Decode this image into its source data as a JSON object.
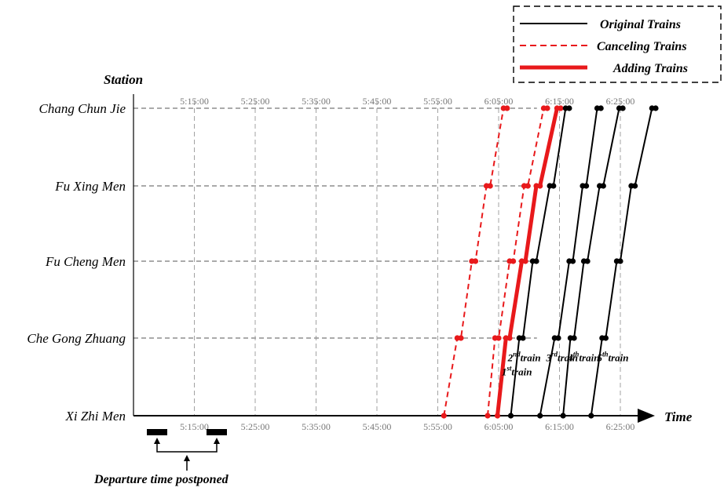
{
  "chart_data": {
    "type": "line",
    "title": "",
    "xlabel": "Time",
    "ylabel": "Station",
    "stations": [
      "Xi Zhi Men",
      "Che Gong Zhuang",
      "Fu Cheng Men",
      "Fu Xing Men",
      "Chang Chun Jie"
    ],
    "x_ticks": [
      "5:15:00",
      "5:25:00",
      "5:35:00",
      "5:45:00",
      "5:55:00",
      "6:05:00",
      "6:15:00",
      "6:25:00"
    ],
    "x_range_minutes": [
      5.0,
      6.5
    ],
    "grid": true,
    "legend": {
      "placement": "top-right",
      "entries": [
        {
          "label": "Original Trains",
          "style": "solid",
          "color": "#000000"
        },
        {
          "label": "Canceling Trains",
          "style": "dashed",
          "color": "#e8191b"
        },
        {
          "label": "Adding Trains",
          "style": "bold",
          "color": "#e8191b"
        }
      ]
    },
    "series": [
      {
        "kind": "canceling",
        "points": [
          [
            5.1,
            0
          ],
          [
            5.32,
            1
          ],
          [
            5.38,
            1
          ],
          [
            5.56,
            2
          ],
          [
            5.62,
            2
          ],
          [
            5.8,
            3
          ],
          [
            5.86,
            3
          ],
          [
            6.08,
            4
          ],
          [
            6.14,
            4
          ]
        ]
      },
      {
        "kind": "canceling",
        "points": [
          [
            5.82,
            0
          ],
          [
            5.94,
            1
          ],
          [
            6.0,
            1
          ],
          [
            6.18,
            2
          ],
          [
            6.24,
            2
          ],
          [
            6.42,
            3
          ],
          [
            6.48,
            3
          ],
          [
            6.74,
            4
          ],
          [
            6.8,
            4
          ]
        ]
      },
      {
        "kind": "adding",
        "points": [
          [
            5.98,
            0
          ],
          [
            6.12,
            1
          ],
          [
            6.18,
            1
          ],
          [
            6.38,
            2
          ],
          [
            6.44,
            2
          ],
          [
            6.62,
            3
          ],
          [
            6.68,
            3
          ],
          [
            6.96,
            4
          ],
          [
            7.02,
            4
          ]
        ]
      },
      {
        "kind": "original",
        "points": [
          [
            6.2,
            0
          ],
          [
            6.34,
            1
          ],
          [
            6.4,
            1
          ],
          [
            6.56,
            2
          ],
          [
            6.62,
            2
          ],
          [
            6.84,
            3
          ],
          [
            6.9,
            3
          ],
          [
            7.1,
            4
          ],
          [
            7.16,
            4
          ]
        ]
      },
      {
        "kind": "original",
        "points": [
          [
            6.68,
            0
          ],
          [
            6.92,
            1
          ],
          [
            6.98,
            1
          ],
          [
            7.16,
            2
          ],
          [
            7.22,
            2
          ],
          [
            7.38,
            3
          ],
          [
            7.44,
            3
          ],
          [
            7.62,
            4
          ],
          [
            7.68,
            4
          ]
        ]
      },
      {
        "kind": "original",
        "points": [
          [
            7.06,
            0
          ],
          [
            7.18,
            1
          ],
          [
            7.24,
            1
          ],
          [
            7.4,
            2
          ],
          [
            7.46,
            2
          ],
          [
            7.66,
            3
          ],
          [
            7.72,
            3
          ],
          [
            7.98,
            4
          ],
          [
            8.04,
            4
          ]
        ]
      },
      {
        "kind": "original",
        "points": [
          [
            7.52,
            0
          ],
          [
            7.7,
            1
          ],
          [
            7.76,
            1
          ],
          [
            7.94,
            2
          ],
          [
            8.0,
            2
          ],
          [
            8.18,
            3
          ],
          [
            8.24,
            3
          ],
          [
            8.52,
            4
          ],
          [
            8.58,
            4
          ]
        ]
      }
    ],
    "train_labels": [
      {
        "num": "1",
        "sup": "st",
        "text": "train",
        "x": 6.05,
        "y": 0.52
      },
      {
        "num": "2",
        "sup": "nd",
        "text": "train",
        "x": 6.15,
        "y": 0.7
      },
      {
        "num": "3",
        "sup": "rd",
        "text": "train",
        "x": 6.78,
        "y": 0.7
      },
      {
        "num": "4",
        "sup": "th",
        "text": "train",
        "x": 7.14,
        "y": 0.7
      },
      {
        "num": "5",
        "sup": "th",
        "text": "train",
        "x": 7.62,
        "y": 0.7
      }
    ],
    "annotation": "Departure time postponed"
  }
}
